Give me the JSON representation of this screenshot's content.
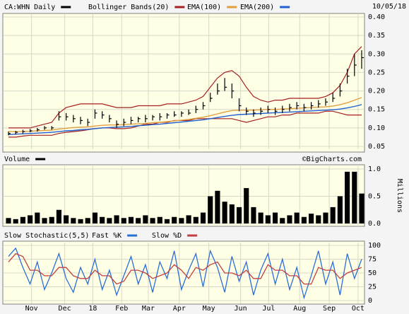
{
  "chart_data": [
    {
      "type": "ohlc",
      "date": "10/05/18",
      "series": [
        {
          "name": "CA:WHN Daily",
          "color": "#000000",
          "high": [
            0.09,
            0.092,
            0.095,
            0.097,
            0.1,
            0.105,
            0.105,
            0.145,
            0.14,
            0.135,
            0.13,
            0.125,
            0.15,
            0.145,
            0.135,
            0.12,
            0.125,
            0.13,
            0.13,
            0.135,
            0.135,
            0.14,
            0.14,
            0.145,
            0.145,
            0.15,
            0.16,
            0.17,
            0.195,
            0.22,
            0.235,
            0.22,
            0.18,
            0.155,
            0.15,
            0.155,
            0.16,
            0.155,
            0.16,
            0.165,
            0.17,
            0.165,
            0.17,
            0.175,
            0.18,
            0.195,
            0.22,
            0.26,
            0.3,
            0.31
          ],
          "low": [
            0.08,
            0.082,
            0.085,
            0.088,
            0.09,
            0.095,
            0.095,
            0.12,
            0.12,
            0.115,
            0.11,
            0.105,
            0.125,
            0.125,
            0.115,
            0.1,
            0.105,
            0.11,
            0.115,
            0.115,
            0.12,
            0.12,
            0.125,
            0.13,
            0.13,
            0.135,
            0.14,
            0.15,
            0.17,
            0.19,
            0.2,
            0.18,
            0.145,
            0.135,
            0.13,
            0.135,
            0.14,
            0.135,
            0.14,
            0.145,
            0.15,
            0.145,
            0.15,
            0.155,
            0.16,
            0.17,
            0.185,
            0.22,
            0.24,
            0.26
          ],
          "close": [
            0.085,
            0.088,
            0.09,
            0.092,
            0.095,
            0.1,
            0.1,
            0.13,
            0.13,
            0.125,
            0.12,
            0.115,
            0.14,
            0.135,
            0.125,
            0.11,
            0.115,
            0.12,
            0.125,
            0.125,
            0.13,
            0.13,
            0.135,
            0.135,
            0.14,
            0.14,
            0.15,
            0.16,
            0.18,
            0.2,
            0.21,
            0.2,
            0.16,
            0.145,
            0.14,
            0.145,
            0.15,
            0.145,
            0.15,
            0.155,
            0.16,
            0.155,
            0.16,
            0.165,
            0.17,
            0.18,
            0.2,
            0.24,
            0.27,
            0.29
          ]
        },
        {
          "name": "Bollinger Bands(20)",
          "color": "#a52020",
          "upper": [
            0.1,
            0.1,
            0.1,
            0.1,
            0.105,
            0.11,
            0.115,
            0.14,
            0.155,
            0.16,
            0.165,
            0.165,
            0.165,
            0.165,
            0.16,
            0.155,
            0.155,
            0.155,
            0.16,
            0.16,
            0.16,
            0.16,
            0.165,
            0.165,
            0.165,
            0.17,
            0.175,
            0.185,
            0.21,
            0.235,
            0.25,
            0.255,
            0.24,
            0.21,
            0.185,
            0.175,
            0.17,
            0.175,
            0.175,
            0.18,
            0.18,
            0.18,
            0.18,
            0.18,
            0.185,
            0.195,
            0.215,
            0.25,
            0.3,
            0.32
          ],
          "lower": [
            0.075,
            0.075,
            0.078,
            0.08,
            0.08,
            0.08,
            0.08,
            0.085,
            0.088,
            0.09,
            0.092,
            0.095,
            0.098,
            0.1,
            0.1,
            0.098,
            0.098,
            0.1,
            0.105,
            0.11,
            0.11,
            0.115,
            0.115,
            0.12,
            0.12,
            0.12,
            0.125,
            0.125,
            0.125,
            0.125,
            0.125,
            0.125,
            0.12,
            0.115,
            0.12,
            0.125,
            0.13,
            0.13,
            0.135,
            0.135,
            0.14,
            0.14,
            0.14,
            0.14,
            0.145,
            0.145,
            0.14,
            0.135,
            0.135,
            0.135
          ]
        },
        {
          "name": "EMA(100)",
          "color": "#e0a040",
          "values": [
            0.09,
            0.09,
            0.09,
            0.091,
            0.092,
            0.093,
            0.094,
            0.097,
            0.099,
            0.101,
            0.102,
            0.103,
            0.105,
            0.107,
            0.108,
            0.108,
            0.109,
            0.11,
            0.111,
            0.112,
            0.114,
            0.115,
            0.117,
            0.119,
            0.121,
            0.123,
            0.126,
            0.129,
            0.133,
            0.138,
            0.143,
            0.147,
            0.148,
            0.148,
            0.148,
            0.149,
            0.15,
            0.15,
            0.151,
            0.152,
            0.153,
            0.154,
            0.155,
            0.156,
            0.157,
            0.159,
            0.163,
            0.168,
            0.175,
            0.182
          ]
        },
        {
          "name": "EMA(200)",
          "color": "#2060d0",
          "values": [
            0.082,
            0.083,
            0.084,
            0.085,
            0.086,
            0.087,
            0.088,
            0.09,
            0.092,
            0.093,
            0.095,
            0.096,
            0.098,
            0.1,
            0.101,
            0.102,
            0.103,
            0.104,
            0.106,
            0.107,
            0.109,
            0.11,
            0.112,
            0.114,
            0.116,
            0.118,
            0.12,
            0.122,
            0.125,
            0.128,
            0.131,
            0.134,
            0.136,
            0.137,
            0.138,
            0.139,
            0.14,
            0.141,
            0.142,
            0.143,
            0.144,
            0.145,
            0.146,
            0.147,
            0.148,
            0.149,
            0.151,
            0.154,
            0.158,
            0.163
          ]
        }
      ],
      "xlim": [
        0,
        49
      ],
      "ylim": [
        0.05,
        0.4
      ],
      "yticks": [
        {
          "value": 0.05,
          "label": "0.05"
        },
        {
          "value": 0.1,
          "label": "0.10"
        },
        {
          "value": 0.15,
          "label": "0.15"
        },
        {
          "value": 0.2,
          "label": "0.20"
        },
        {
          "value": 0.25,
          "label": "0.25"
        },
        {
          "value": 0.3,
          "label": "0.30"
        },
        {
          "value": 0.35,
          "label": "0.35"
        },
        {
          "value": 0.4,
          "label": "0.40"
        }
      ],
      "grid": true
    },
    {
      "type": "bar",
      "credit": "©BigCharts.com",
      "y_label": "Millions",
      "series": [
        {
          "name": "Volume",
          "color": "#000000",
          "values": [
            0.1,
            0.08,
            0.12,
            0.15,
            0.2,
            0.1,
            0.12,
            0.25,
            0.15,
            0.1,
            0.08,
            0.1,
            0.2,
            0.12,
            0.1,
            0.15,
            0.1,
            0.12,
            0.1,
            0.15,
            0.1,
            0.12,
            0.08,
            0.12,
            0.1,
            0.15,
            0.12,
            0.2,
            0.5,
            0.6,
            0.4,
            0.35,
            0.3,
            0.65,
            0.3,
            0.2,
            0.15,
            0.2,
            0.1,
            0.15,
            0.2,
            0.12,
            0.18,
            0.15,
            0.2,
            0.3,
            0.5,
            0.95,
            0.95,
            0.55
          ]
        }
      ],
      "xlim": [
        0,
        49
      ],
      "ylim": [
        0,
        1.0
      ],
      "yticks": [
        {
          "value": 0,
          "label": "0.0"
        },
        {
          "value": 0.5,
          "label": "0.5"
        },
        {
          "value": 1.0,
          "label": "1.0"
        }
      ],
      "grid": true
    },
    {
      "type": "line",
      "title": "Slow Stochastic(5,5)",
      "series": [
        {
          "name": "Fast %K",
          "color": "#2a6fd6",
          "values": [
            80,
            95,
            60,
            30,
            70,
            20,
            50,
            85,
            40,
            15,
            60,
            30,
            75,
            20,
            55,
            10,
            45,
            80,
            30,
            65,
            15,
            70,
            40,
            90,
            20,
            55,
            85,
            25,
            90,
            60,
            15,
            80,
            35,
            70,
            10,
            55,
            85,
            30,
            75,
            20,
            60,
            5,
            45,
            90,
            30,
            70,
            10,
            85,
            40,
            75
          ]
        },
        {
          "name": "Slow %D",
          "color": "#c04040",
          "values": [
            70,
            85,
            80,
            55,
            55,
            45,
            45,
            60,
            60,
            45,
            40,
            40,
            55,
            45,
            45,
            30,
            35,
            55,
            55,
            50,
            40,
            45,
            50,
            65,
            55,
            40,
            60,
            55,
            65,
            70,
            50,
            50,
            45,
            55,
            40,
            40,
            65,
            55,
            55,
            45,
            45,
            30,
            30,
            60,
            55,
            55,
            40,
            50,
            55,
            60
          ]
        }
      ],
      "xlim": [
        0,
        49
      ],
      "ylim": [
        0,
        100
      ],
      "yticks": [
        0,
        25,
        50,
        75,
        100
      ],
      "xticks": [
        {
          "value": 3.2,
          "label": "Nov"
        },
        {
          "value": 7.8,
          "label": "Dec"
        },
        {
          "value": 11.7,
          "label": "18"
        },
        {
          "value": 15.7,
          "label": "Feb"
        },
        {
          "value": 19.4,
          "label": "Mar"
        },
        {
          "value": 23.7,
          "label": "Apr"
        },
        {
          "value": 27.8,
          "label": "May"
        },
        {
          "value": 32.2,
          "label": "Jun"
        },
        {
          "value": 36.1,
          "label": "Jul"
        },
        {
          "value": 40.4,
          "label": "Aug"
        },
        {
          "value": 44.5,
          "label": "Sep"
        },
        {
          "value": 48.5,
          "label": "Oct"
        }
      ],
      "grid": true
    }
  ]
}
